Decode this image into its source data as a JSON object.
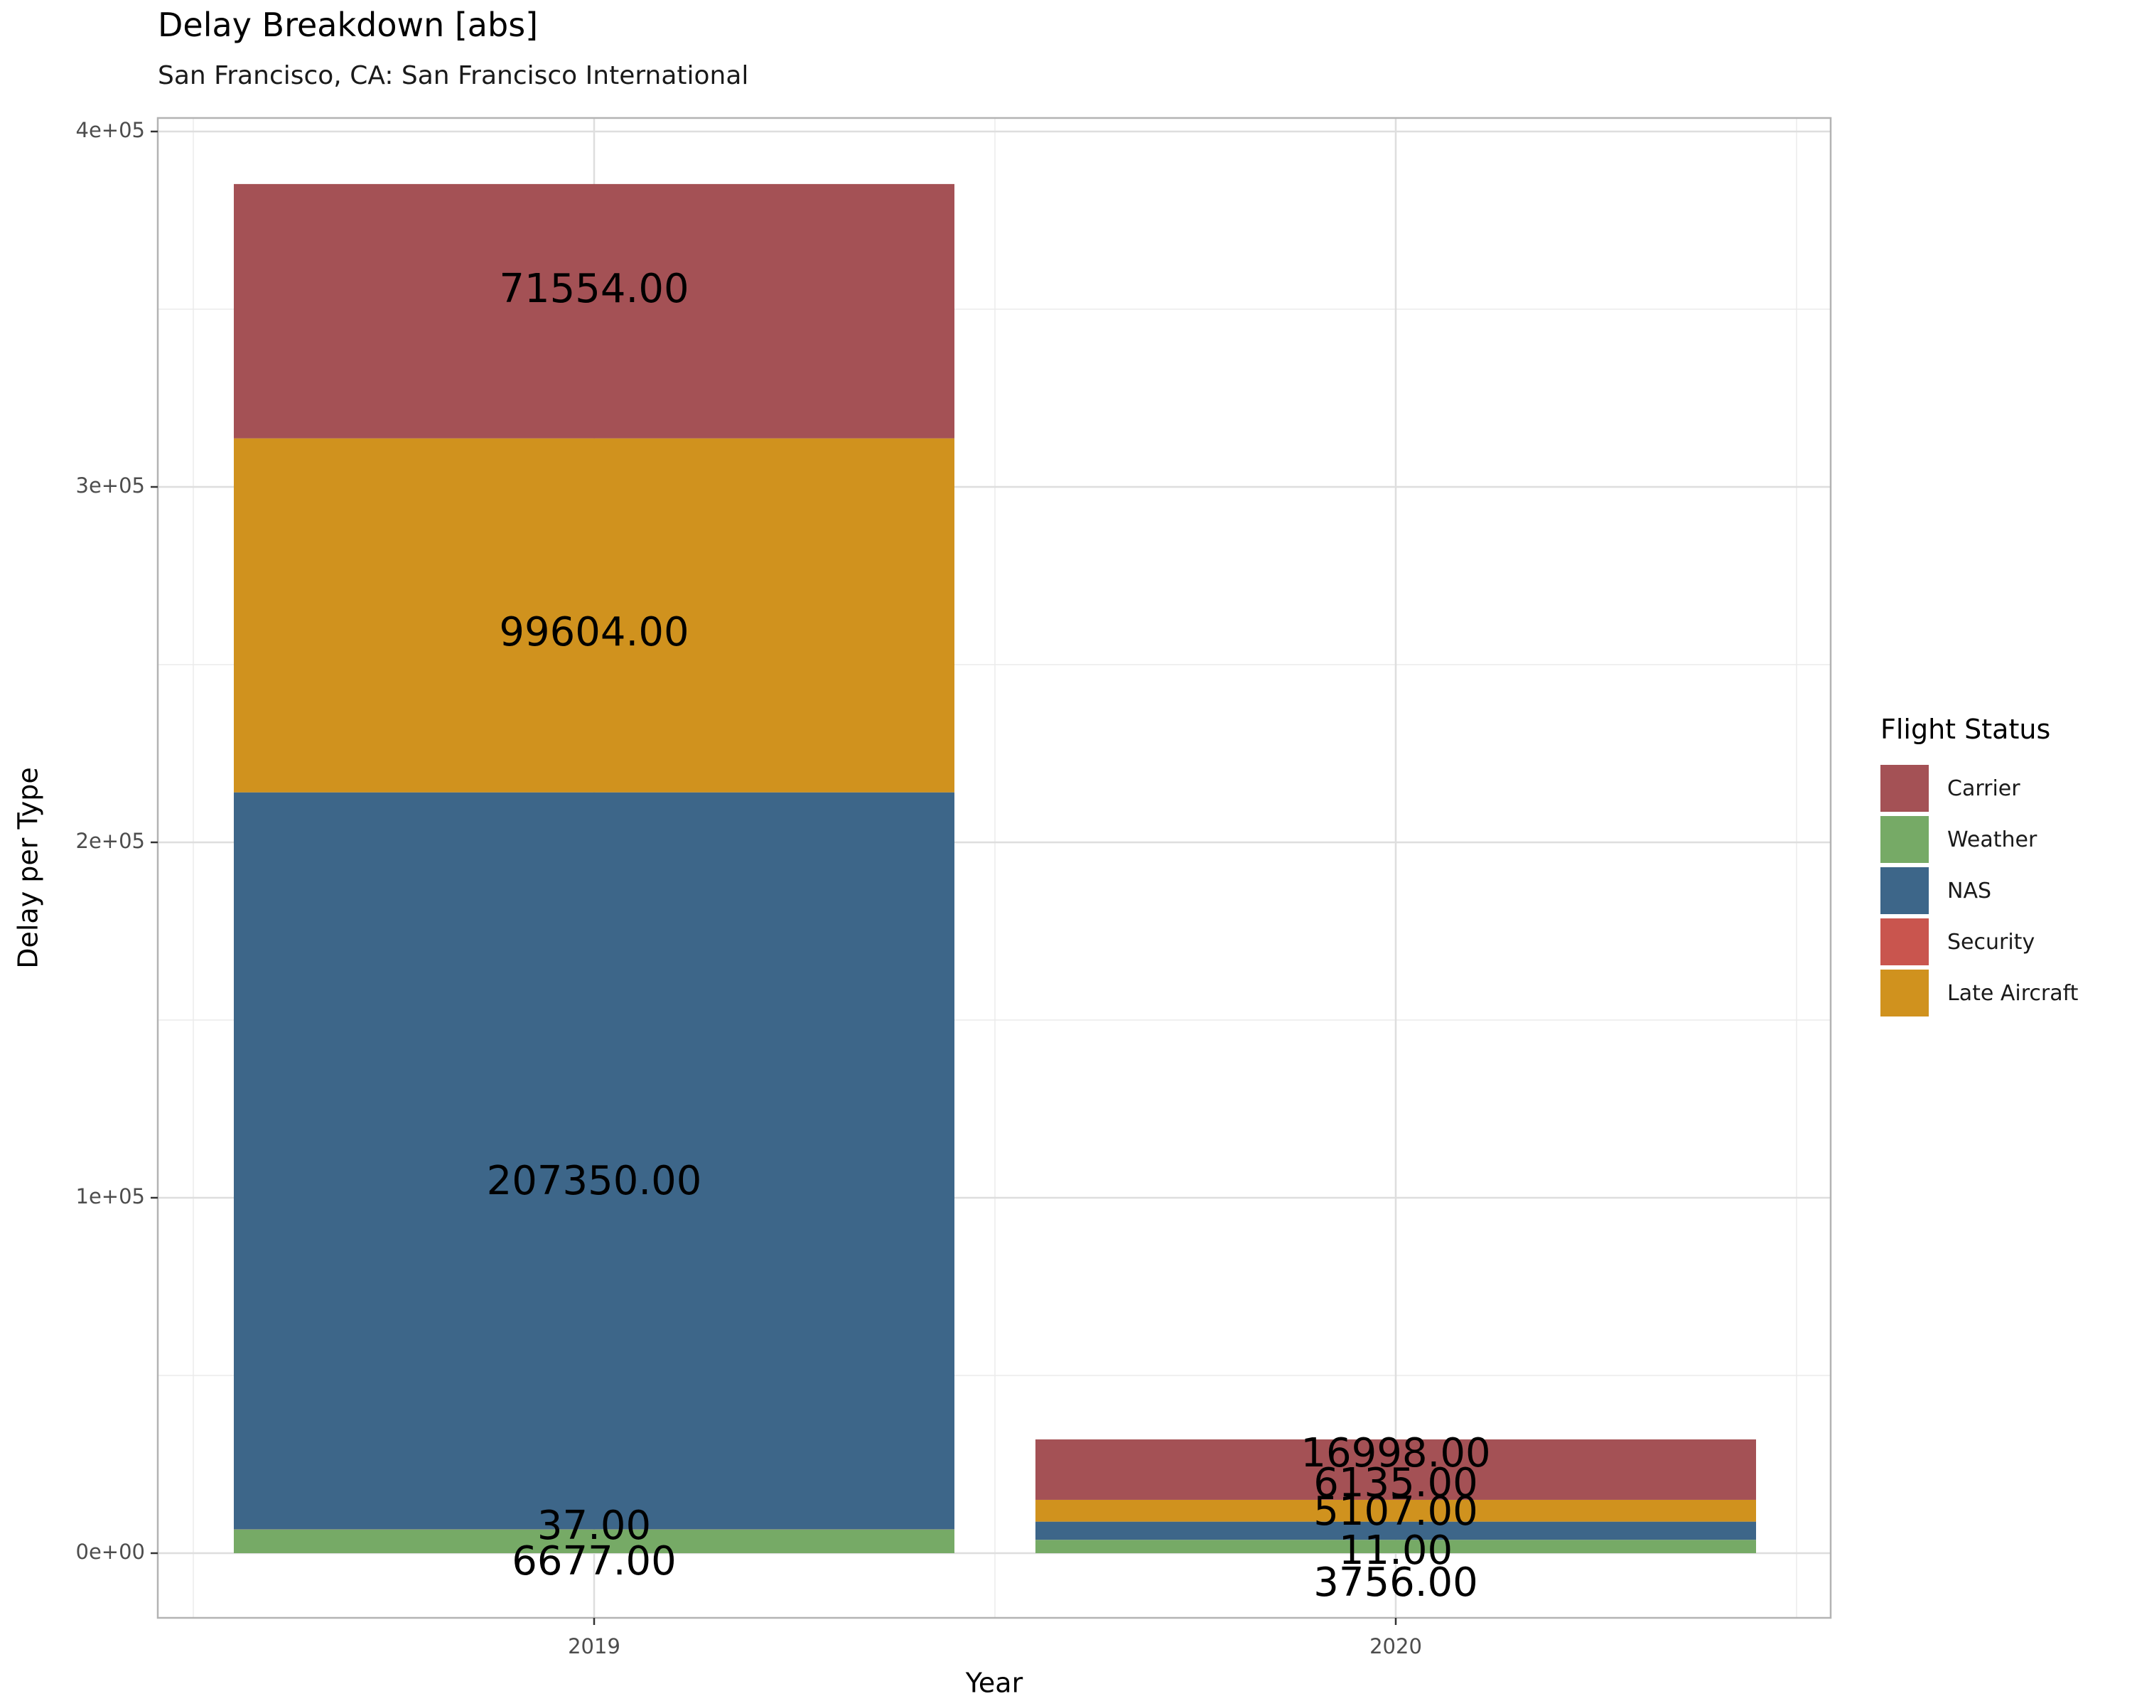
{
  "title": "Delay Breakdown [abs]",
  "subtitle": "San Francisco, CA: San Francisco International",
  "chart_data": {
    "type": "bar",
    "stacked": true,
    "title": "Delay Breakdown [abs]",
    "subtitle": "San Francisco, CA: San Francisco International",
    "xlabel": "Year",
    "ylabel": "Delay per Type",
    "categories": [
      "2019",
      "2020"
    ],
    "ylim": [
      -18000,
      400000
    ],
    "y_ticks": [
      0,
      100000,
      200000,
      300000,
      400000
    ],
    "y_tick_labels": [
      "0e+00",
      "1e+05",
      "2e+05",
      "3e+05",
      "4e+05"
    ],
    "grid": true,
    "legend_title": "Flight Status",
    "legend_position": "right",
    "series": [
      {
        "name": "Carrier",
        "color": "#a45155",
        "values": [
          71554,
          16998
        ],
        "labels": [
          "71554.00",
          "16998.00"
        ]
      },
      {
        "name": "Weather",
        "color": "#76aa66",
        "values": [
          6677,
          3756
        ],
        "labels": [
          "6677.00",
          "3756.00"
        ]
      },
      {
        "name": "NAS",
        "color": "#3d6689",
        "values": [
          207350,
          5107
        ],
        "labels": [
          "207350.00",
          "5107.00"
        ]
      },
      {
        "name": "Security",
        "color": "#c9554e",
        "values": [
          37,
          11
        ],
        "labels": [
          "37.00",
          "11.00"
        ]
      },
      {
        "name": "Late Aircraft",
        "color": "#d0921e",
        "values": [
          99604,
          6135
        ],
        "labels": [
          "99604.00",
          "6135.00"
        ]
      }
    ],
    "stack_order_bottom_to_top": [
      "Weather",
      "Security",
      "NAS",
      "Late Aircraft",
      "Carrier"
    ]
  }
}
